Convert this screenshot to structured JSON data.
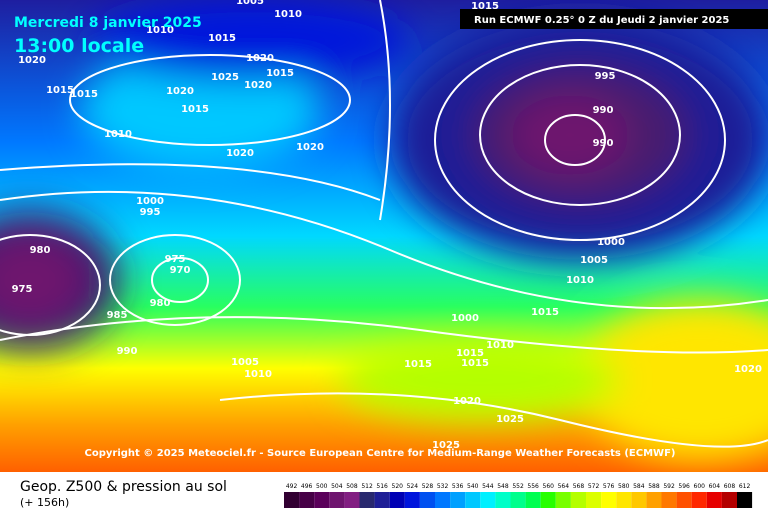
{
  "header": {
    "date": "Mercredi 8 janvier 2025",
    "time": "13:00 locale",
    "run": "Run ECMWF 0.25° 0 Z du Jeudi 2 janvier 2025"
  },
  "copyright": "Copyright © 2025 Meteociel.fr - Source European Centre for Medium-Range Weather Forecasts (ECMWF)",
  "isobar_labels": [
    1005,
    1010,
    1015,
    1010,
    1015,
    1020,
    1015,
    1015,
    1020,
    1015,
    1025,
    1020,
    1015,
    1020,
    1010,
    1020,
    1020,
    995,
    990,
    990,
    1000,
    995,
    980,
    975,
    975,
    970,
    980,
    985,
    990,
    1000,
    1005,
    1010,
    1015,
    1000,
    1010,
    1015,
    1015,
    1015,
    1005,
    1010,
    1020,
    1025,
    1025,
    1020
  ],
  "legend": {
    "title": "Geop. Z500 & pression au sol",
    "lead": "(+ 156h)",
    "levels": [
      492,
      496,
      500,
      504,
      508,
      512,
      516,
      520,
      524,
      528,
      532,
      536,
      540,
      544,
      548,
      552,
      556,
      560,
      564,
      568,
      572,
      576,
      580,
      584,
      588,
      592,
      596,
      600,
      604,
      608,
      612
    ],
    "colors": [
      "#320032",
      "#460046",
      "#5a005a",
      "#6e146e",
      "#821e82",
      "#28286e",
      "#1e1e96",
      "#0000b4",
      "#0014dc",
      "#0050f0",
      "#0078ff",
      "#00a0ff",
      "#00c8ff",
      "#00f0ff",
      "#00ffc8",
      "#00ff8c",
      "#00ff50",
      "#28ff00",
      "#78ff00",
      "#b4ff00",
      "#dcff00",
      "#ffff00",
      "#ffe600",
      "#ffc800",
      "#ffa000",
      "#ff7800",
      "#ff5000",
      "#ff2800",
      "#e60000",
      "#b40000",
      "#000000"
    ]
  }
}
